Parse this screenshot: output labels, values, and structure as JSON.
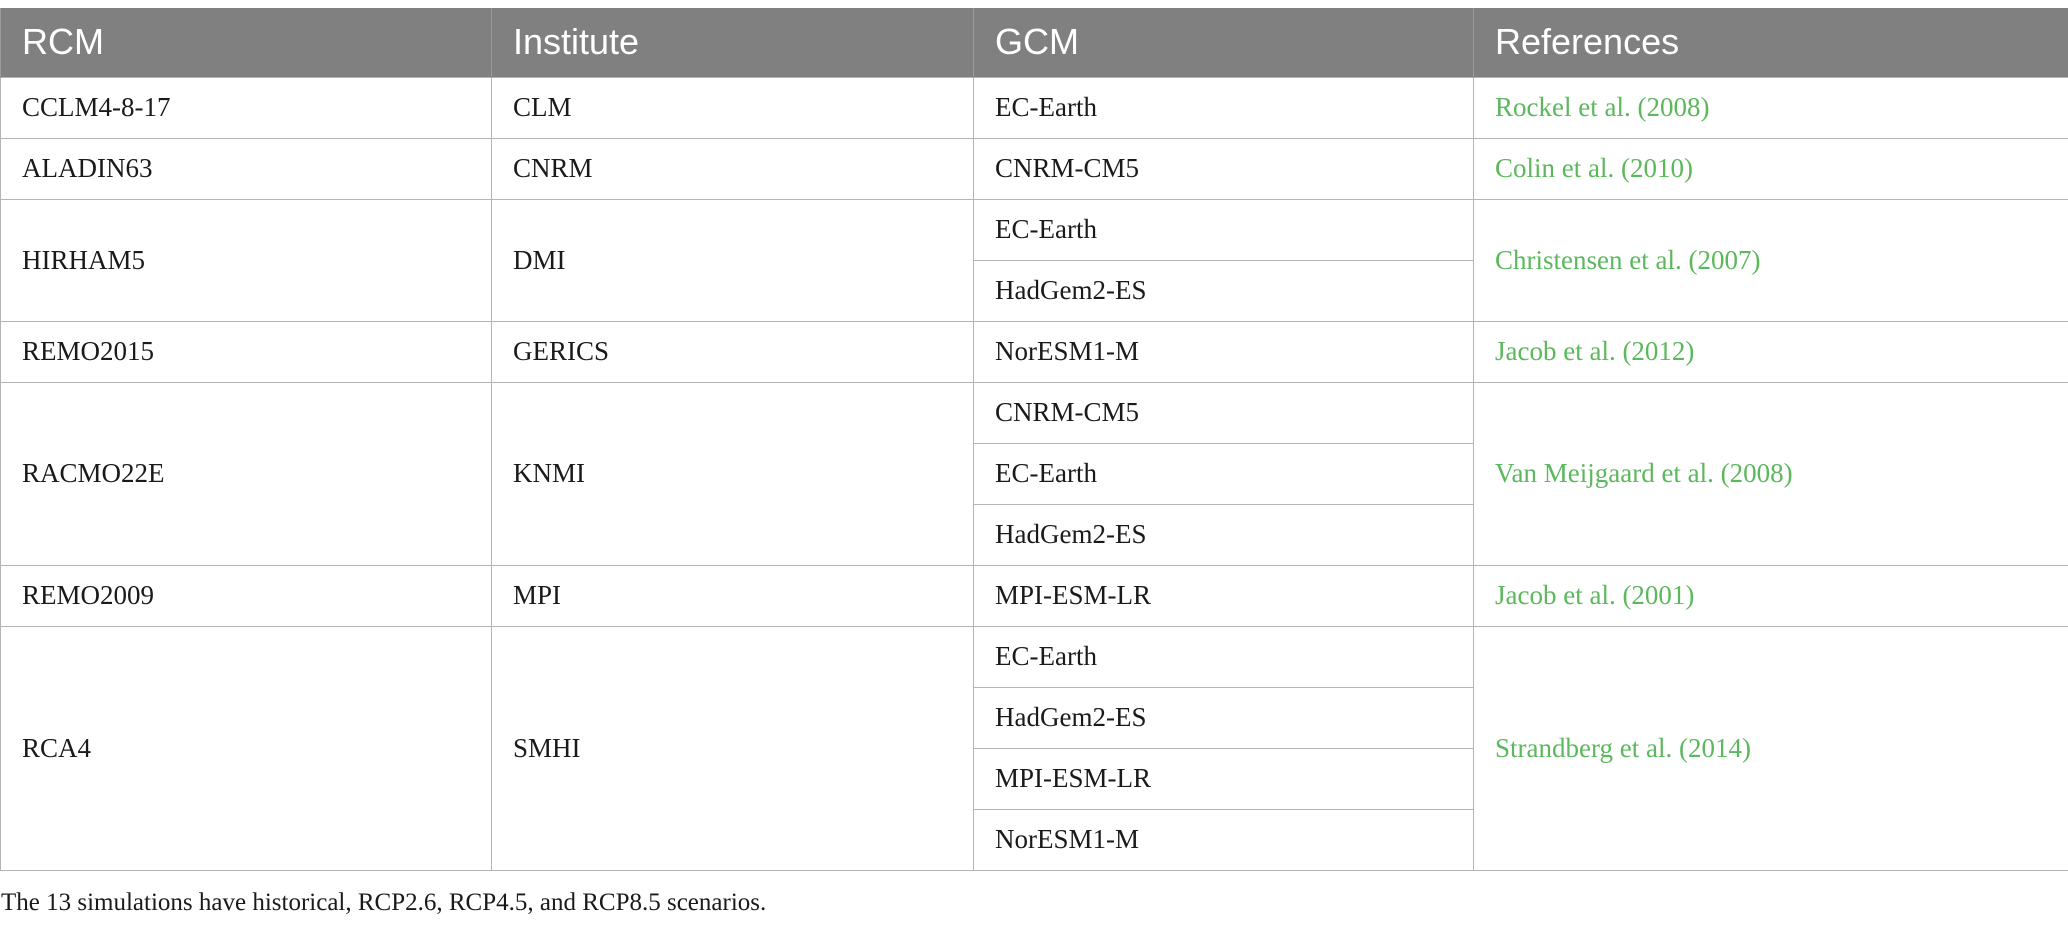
{
  "table": {
    "headers": [
      "RCM",
      "Institute",
      "GCM",
      "References"
    ],
    "groups": [
      {
        "rcm": "CCLM4-8-17",
        "institute": "CLM",
        "gcms": [
          "EC-Earth"
        ],
        "reference": "Rockel et al. (2008)"
      },
      {
        "rcm": "ALADIN63",
        "institute": "CNRM",
        "gcms": [
          "CNRM-CM5"
        ],
        "reference": "Colin et al. (2010)"
      },
      {
        "rcm": "HIRHAM5",
        "institute": "DMI",
        "gcms": [
          "EC-Earth",
          "HadGem2-ES"
        ],
        "reference": "Christensen et al. (2007)"
      },
      {
        "rcm": "REMO2015",
        "institute": "GERICS",
        "gcms": [
          "NorESM1-M"
        ],
        "reference": "Jacob et al. (2012)"
      },
      {
        "rcm": "RACMO22E",
        "institute": "KNMI",
        "gcms": [
          "CNRM-CM5",
          "EC-Earth",
          "HadGem2-ES"
        ],
        "reference": "Van Meijgaard et al. (2008)"
      },
      {
        "rcm": "REMO2009",
        "institute": "MPI",
        "gcms": [
          "MPI-ESM-LR"
        ],
        "reference": "Jacob et al. (2001)"
      },
      {
        "rcm": "RCA4",
        "institute": "SMHI",
        "gcms": [
          "EC-Earth",
          "HadGem2-ES",
          "MPI-ESM-LR",
          "NorESM1-M"
        ],
        "reference": "Strandberg et al. (2014)"
      }
    ]
  },
  "footnote": "The 13 simulations have historical, RCP2.6, RCP4.5, and RCP8.5 scenarios.",
  "colors": {
    "header_bg": "#808080",
    "header_text": "#ffffff",
    "reference_link": "#5cb85c",
    "border": "#b4b4b4"
  }
}
